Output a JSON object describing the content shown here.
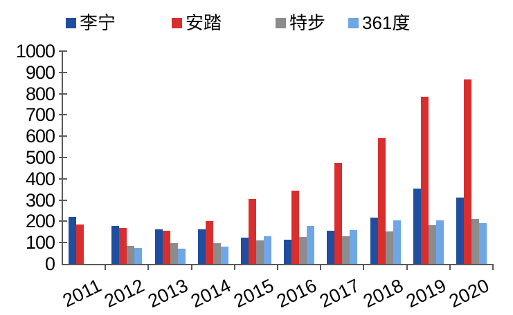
{
  "chart_data": {
    "type": "bar",
    "title": "",
    "xlabel": "",
    "ylabel": "",
    "categories": [
      "2011",
      "2012",
      "2013",
      "2014",
      "2015",
      "2016",
      "2017",
      "2018",
      "2019",
      "2020"
    ],
    "series": [
      {
        "id": "lining",
        "name": "李宁",
        "color": "#1F4E9E",
        "values": [
          222,
          180,
          162,
          161,
          124,
          115,
          156,
          218,
          355,
          312
        ]
      },
      {
        "id": "anta",
        "name": "安踏",
        "color": "#D92E2E",
        "values": [
          184,
          168,
          157,
          202,
          304,
          344,
          475,
          592,
          787,
          868
        ]
      },
      {
        "id": "xtep",
        "name": "特步",
        "color": "#8C8C8C",
        "values": [
          null,
          84,
          98,
          97,
          111,
          127,
          131,
          151,
          183,
          210
        ]
      },
      {
        "id": "x361du",
        "name": "361度",
        "color": "#6FA6E5",
        "values": [
          null,
          76,
          73,
          82,
          131,
          178,
          159,
          204,
          204,
          192
        ]
      }
    ],
    "ylim": [
      0,
      1000
    ],
    "ytick_step": 100,
    "grid": false,
    "legend_position": "top"
  },
  "colors": {
    "background": "#FFFFFF",
    "axis": "#5A5A5A",
    "text": "#000000"
  }
}
